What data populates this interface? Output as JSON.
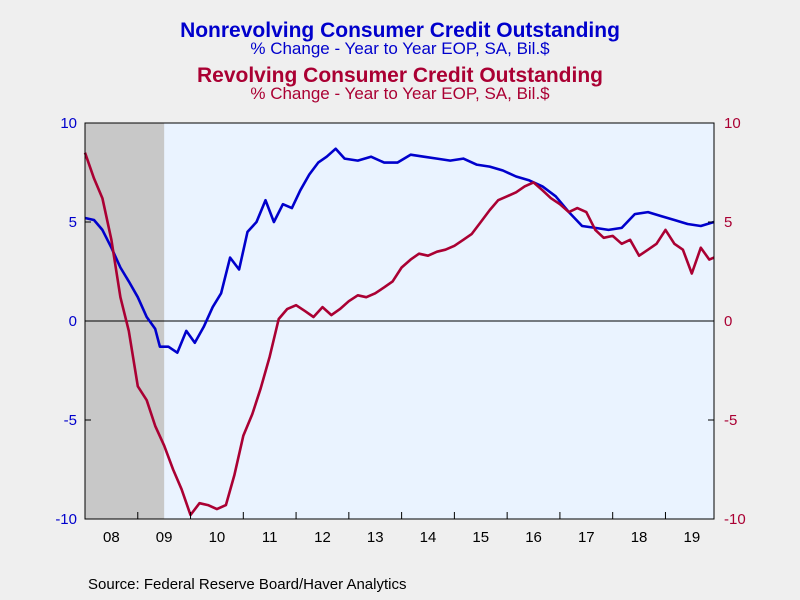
{
  "colors": {
    "blue": "#0000cc",
    "red": "#aa0033",
    "recession": "#c8c8c8",
    "plot_bg": "#eaf3ff"
  },
  "titles": [
    {
      "title": "Nonrevolving Consumer Credit Outstanding",
      "subtitle": "% Change - Year to Year     EOP, SA, Bil.$"
    },
    {
      "title": "Revolving Consumer Credit Outstanding",
      "subtitle": "% Change - Year to Year     EOP, SA, Bil.$"
    }
  ],
  "source": "Source:  Federal Reserve Board/Haver Analytics",
  "chart_data": {
    "type": "line",
    "x_tick_labels": [
      "08",
      "09",
      "10",
      "11",
      "12",
      "13",
      "14",
      "15",
      "16",
      "17",
      "18",
      "19"
    ],
    "x_range": [
      2008.0,
      2019.92
    ],
    "y_left": {
      "lim": [
        -10,
        10
      ],
      "ticks": [
        "10",
        "5",
        "0",
        "-5",
        "-10"
      ]
    },
    "y_right": {
      "lim": [
        -10,
        10
      ],
      "ticks": [
        "10",
        "5",
        "0",
        "-5",
        "-10"
      ]
    },
    "recession_shading": [
      [
        2008.0,
        2009.5
      ]
    ],
    "zero_line": true,
    "series": [
      {
        "name": "Nonrevolving Consumer Credit Outstanding",
        "color": "#0000cc",
        "points": [
          [
            2008.0,
            5.2
          ],
          [
            2008.17,
            5.1
          ],
          [
            2008.33,
            4.6
          ],
          [
            2008.5,
            3.7
          ],
          [
            2008.67,
            2.7
          ],
          [
            2008.83,
            2.0
          ],
          [
            2009.0,
            1.2
          ],
          [
            2009.17,
            0.2
          ],
          [
            2009.33,
            -0.4
          ],
          [
            2009.42,
            -1.3
          ],
          [
            2009.58,
            -1.3
          ],
          [
            2009.75,
            -1.6
          ],
          [
            2009.92,
            -0.5
          ],
          [
            2010.08,
            -1.1
          ],
          [
            2010.25,
            -0.3
          ],
          [
            2010.42,
            0.7
          ],
          [
            2010.58,
            1.4
          ],
          [
            2010.75,
            3.2
          ],
          [
            2010.92,
            2.6
          ],
          [
            2011.08,
            4.5
          ],
          [
            2011.25,
            5.0
          ],
          [
            2011.42,
            6.1
          ],
          [
            2011.58,
            5.0
          ],
          [
            2011.75,
            5.9
          ],
          [
            2011.92,
            5.7
          ],
          [
            2012.08,
            6.6
          ],
          [
            2012.25,
            7.4
          ],
          [
            2012.42,
            8.0
          ],
          [
            2012.58,
            8.3
          ],
          [
            2012.75,
            8.7
          ],
          [
            2012.92,
            8.2
          ],
          [
            2013.17,
            8.1
          ],
          [
            2013.42,
            8.3
          ],
          [
            2013.67,
            8.0
          ],
          [
            2013.92,
            8.0
          ],
          [
            2014.17,
            8.4
          ],
          [
            2014.42,
            8.3
          ],
          [
            2014.67,
            8.2
          ],
          [
            2014.92,
            8.1
          ],
          [
            2015.17,
            8.2
          ],
          [
            2015.42,
            7.9
          ],
          [
            2015.67,
            7.8
          ],
          [
            2015.92,
            7.6
          ],
          [
            2016.17,
            7.3
          ],
          [
            2016.42,
            7.1
          ],
          [
            2016.67,
            6.8
          ],
          [
            2016.92,
            6.3
          ],
          [
            2017.17,
            5.5
          ],
          [
            2017.42,
            4.8
          ],
          [
            2017.67,
            4.7
          ],
          [
            2017.92,
            4.6
          ],
          [
            2018.17,
            4.7
          ],
          [
            2018.42,
            5.4
          ],
          [
            2018.67,
            5.5
          ],
          [
            2018.92,
            5.3
          ],
          [
            2019.17,
            5.1
          ],
          [
            2019.42,
            4.9
          ],
          [
            2019.67,
            4.8
          ],
          [
            2019.92,
            5.0
          ]
        ]
      },
      {
        "name": "Revolving Consumer Credit Outstanding",
        "color": "#aa0033",
        "points": [
          [
            2008.0,
            8.5
          ],
          [
            2008.17,
            7.2
          ],
          [
            2008.33,
            6.2
          ],
          [
            2008.5,
            4.1
          ],
          [
            2008.67,
            1.2
          ],
          [
            2008.83,
            -0.5
          ],
          [
            2009.0,
            -3.3
          ],
          [
            2009.17,
            -4.0
          ],
          [
            2009.33,
            -5.3
          ],
          [
            2009.5,
            -6.3
          ],
          [
            2009.67,
            -7.5
          ],
          [
            2009.83,
            -8.5
          ],
          [
            2010.0,
            -9.8
          ],
          [
            2010.17,
            -9.2
          ],
          [
            2010.33,
            -9.3
          ],
          [
            2010.5,
            -9.5
          ],
          [
            2010.67,
            -9.3
          ],
          [
            2010.83,
            -7.8
          ],
          [
            2011.0,
            -5.8
          ],
          [
            2011.17,
            -4.7
          ],
          [
            2011.33,
            -3.4
          ],
          [
            2011.5,
            -1.8
          ],
          [
            2011.67,
            0.1
          ],
          [
            2011.83,
            0.6
          ],
          [
            2012.0,
            0.8
          ],
          [
            2012.17,
            0.5
          ],
          [
            2012.33,
            0.2
          ],
          [
            2012.5,
            0.7
          ],
          [
            2012.67,
            0.3
          ],
          [
            2012.83,
            0.6
          ],
          [
            2013.0,
            1.0
          ],
          [
            2013.17,
            1.3
          ],
          [
            2013.33,
            1.2
          ],
          [
            2013.5,
            1.4
          ],
          [
            2013.67,
            1.7
          ],
          [
            2013.83,
            2.0
          ],
          [
            2014.0,
            2.7
          ],
          [
            2014.17,
            3.1
          ],
          [
            2014.33,
            3.4
          ],
          [
            2014.5,
            3.3
          ],
          [
            2014.67,
            3.5
          ],
          [
            2014.83,
            3.6
          ],
          [
            2015.0,
            3.8
          ],
          [
            2015.17,
            4.1
          ],
          [
            2015.33,
            4.4
          ],
          [
            2015.5,
            5.0
          ],
          [
            2015.67,
            5.6
          ],
          [
            2015.83,
            6.1
          ],
          [
            2016.0,
            6.3
          ],
          [
            2016.17,
            6.5
          ],
          [
            2016.33,
            6.8
          ],
          [
            2016.5,
            7.0
          ],
          [
            2016.67,
            6.6
          ],
          [
            2016.83,
            6.2
          ],
          [
            2017.0,
            5.9
          ],
          [
            2017.17,
            5.5
          ],
          [
            2017.33,
            5.7
          ],
          [
            2017.5,
            5.5
          ],
          [
            2017.67,
            4.6
          ],
          [
            2017.83,
            4.2
          ],
          [
            2018.0,
            4.3
          ],
          [
            2018.17,
            3.9
          ],
          [
            2018.33,
            4.1
          ],
          [
            2018.5,
            3.3
          ],
          [
            2018.67,
            3.6
          ],
          [
            2018.83,
            3.9
          ],
          [
            2019.0,
            4.6
          ],
          [
            2019.17,
            3.9
          ],
          [
            2019.33,
            3.6
          ],
          [
            2019.5,
            2.4
          ],
          [
            2019.67,
            3.7
          ],
          [
            2019.83,
            3.1
          ],
          [
            2019.92,
            3.2
          ]
        ]
      }
    ]
  }
}
